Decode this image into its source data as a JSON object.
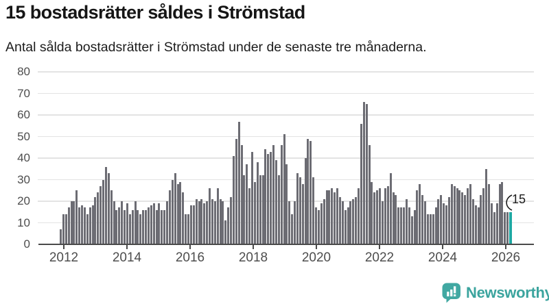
{
  "header": {
    "title": "15 bostadsrätter såldes i Strömstad",
    "subtitle": "Antal sålda bostadsrätter i Strömstad under de senaste tre månaderna."
  },
  "chart_data": {
    "type": "bar",
    "title": "15 bostadsrätter såldes i Strömstad",
    "subtitle": "Antal sålda bostadsrätter i Strömstad under de senaste tre månaderna.",
    "x_start": "2012-01",
    "frequency": "monthly",
    "ylabel": "",
    "xlabel": "",
    "ylim": [
      0,
      80
    ],
    "grid": true,
    "y_ticks": [
      0,
      10,
      20,
      30,
      40,
      50,
      60,
      70,
      80
    ],
    "x_tick_labels": [
      "2012",
      "2014",
      "2016",
      "2018",
      "2020",
      "2022",
      "2024",
      "2026"
    ],
    "bar_color": "#6c6c73",
    "highlight_color": "#1ea9a4",
    "values": [
      7,
      14,
      14,
      17,
      20,
      20,
      25,
      17,
      18,
      17,
      14,
      17,
      18,
      22,
      24,
      27,
      30,
      36,
      33,
      25,
      20,
      16,
      17,
      20,
      16,
      19,
      14,
      16,
      20,
      16,
      14,
      16,
      16,
      17,
      18,
      19,
      16,
      19,
      16,
      16,
      20,
      25,
      30,
      33,
      28,
      29,
      24,
      14,
      14,
      18,
      18,
      21,
      20,
      21,
      19,
      20,
      26,
      21,
      20,
      26,
      21,
      20,
      11,
      17,
      22,
      41,
      49,
      57,
      46,
      32,
      37,
      26,
      43,
      29,
      38,
      32,
      32,
      44,
      42,
      43,
      46,
      39,
      32,
      46,
      51,
      37,
      20,
      14,
      20,
      33,
      31,
      28,
      40,
      49,
      48,
      31,
      17,
      16,
      19,
      21,
      25,
      25,
      26,
      24,
      26,
      22,
      20,
      16,
      17,
      20,
      21,
      22,
      26,
      56,
      66,
      65,
      46,
      29,
      24,
      25,
      26,
      20,
      26,
      27,
      33,
      24,
      23,
      17,
      17,
      17,
      21,
      17,
      13,
      16,
      25,
      28,
      23,
      20,
      14,
      14,
      14,
      17,
      21,
      23,
      19,
      18,
      22,
      28,
      27,
      26,
      25,
      24,
      23,
      26,
      28,
      21,
      18,
      17,
      23,
      26,
      35,
      28,
      19,
      15,
      19,
      28,
      29,
      15,
      15,
      15
    ],
    "highlight": {
      "index": 169,
      "value": 15,
      "label": "15"
    }
  },
  "annotation": {
    "last_value_label": "15"
  },
  "footer": {
    "brand": "Newsworthy",
    "brand_color": "#3ba49e",
    "icon": "newsworthy-bar-chart-bubble-icon"
  }
}
